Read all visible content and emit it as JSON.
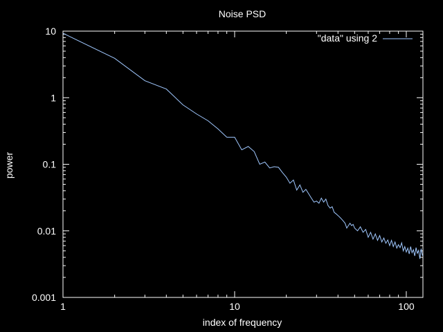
{
  "chart_data": {
    "type": "line",
    "title": "Noise PSD",
    "xlabel": "index of frequency",
    "ylabel": "power",
    "xscale": "log",
    "yscale": "log",
    "xlim": [
      1,
      125
    ],
    "ylim": [
      0.001,
      10
    ],
    "grid": false,
    "legend_position": "top-right",
    "colors": {
      "background": "#000000",
      "foreground": "#ffffff",
      "series": "#a0c8ff"
    },
    "x_ticks": [
      {
        "value": 1,
        "label": "1"
      },
      {
        "value": 10,
        "label": "10"
      },
      {
        "value": 100,
        "label": "100"
      }
    ],
    "y_ticks": [
      {
        "value": 10,
        "label": "10"
      },
      {
        "value": 1,
        "label": "1"
      },
      {
        "value": 0.1,
        "label": "0.1"
      },
      {
        "value": 0.01,
        "label": "0.01"
      },
      {
        "value": 0.001,
        "label": "0.001"
      }
    ],
    "series": [
      {
        "name": "\"data\" using 2",
        "x": [
          1,
          2,
          3,
          4,
          5,
          6,
          7,
          8,
          9,
          10,
          11,
          12,
          13,
          14,
          15,
          16,
          17,
          18,
          19,
          20,
          21,
          22,
          23,
          24,
          25,
          26,
          27,
          28,
          29,
          30,
          31,
          32,
          33,
          34,
          35,
          36,
          37,
          38,
          39,
          40,
          41,
          42,
          43,
          44,
          45,
          46,
          47,
          48,
          49,
          50,
          52,
          54,
          56,
          58,
          60,
          62,
          64,
          66,
          68,
          70,
          72,
          74,
          76,
          78,
          80,
          82,
          84,
          86,
          88,
          90,
          92,
          94,
          96,
          98,
          100,
          102,
          104,
          106,
          108,
          110,
          112,
          114,
          116,
          118,
          120,
          122,
          124,
          125
        ],
        "y": [
          9.3,
          3.9,
          1.8,
          1.35,
          0.78,
          0.57,
          0.45,
          0.34,
          0.255,
          0.255,
          0.165,
          0.185,
          0.155,
          0.1,
          0.108,
          0.088,
          0.092,
          0.09,
          0.075,
          0.064,
          0.052,
          0.058,
          0.041,
          0.049,
          0.038,
          0.042,
          0.036,
          0.031,
          0.027,
          0.028,
          0.026,
          0.031,
          0.027,
          0.03,
          0.024,
          0.022,
          0.023,
          0.019,
          0.018,
          0.017,
          0.016,
          0.015,
          0.014,
          0.013,
          0.011,
          0.012,
          0.013,
          0.012,
          0.0125,
          0.011,
          0.01,
          0.0115,
          0.0095,
          0.0105,
          0.008,
          0.0095,
          0.0075,
          0.009,
          0.0072,
          0.0085,
          0.0068,
          0.0078,
          0.0065,
          0.0073,
          0.006,
          0.0072,
          0.0058,
          0.0068,
          0.0055,
          0.0062,
          0.0056,
          0.0066,
          0.005,
          0.0058,
          0.0048,
          0.0055,
          0.0045,
          0.0058,
          0.0047,
          0.0052,
          0.0042,
          0.0056,
          0.0046,
          0.0051,
          0.0038,
          0.0054,
          0.0043,
          0.0042
        ]
      }
    ]
  }
}
